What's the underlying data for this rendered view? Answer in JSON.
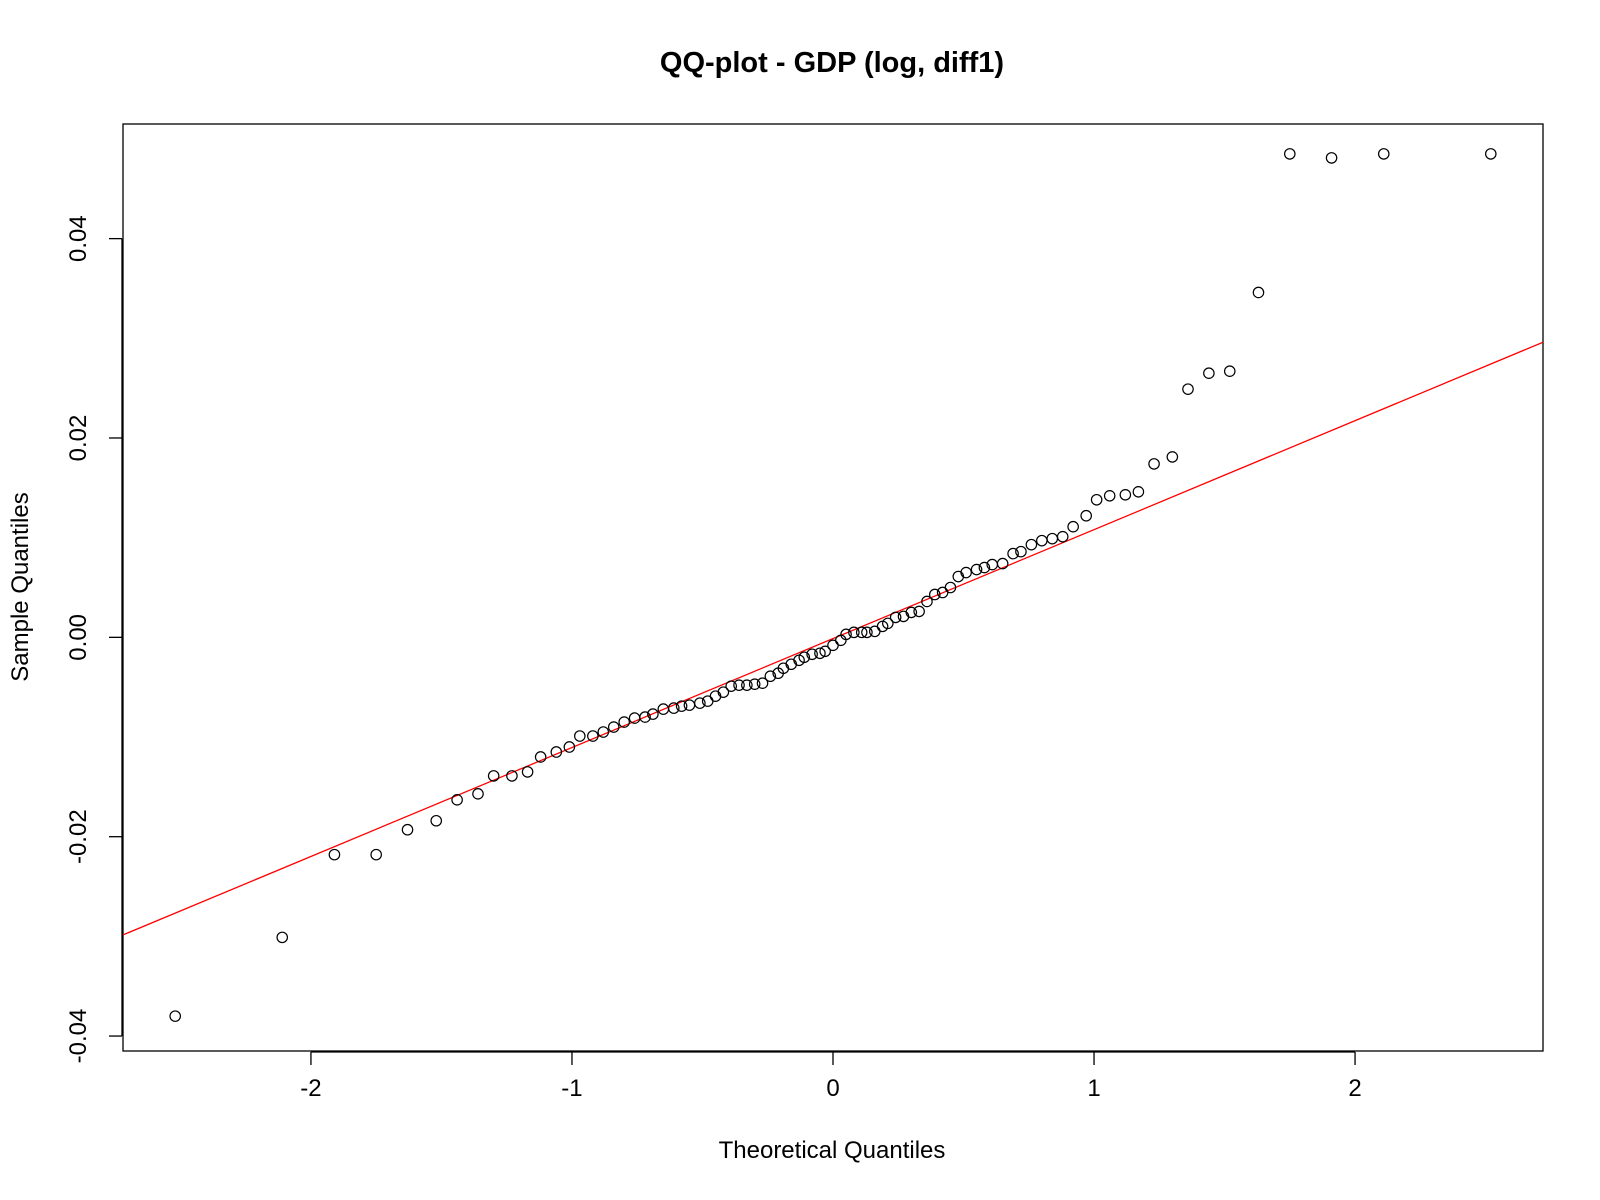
{
  "chart_data": {
    "type": "scatter",
    "title": "QQ-plot - GDP (log, diff1)",
    "xlabel": "Theoretical Quantiles",
    "ylabel": "Sample Quantiles",
    "xlim": [
      -2.72,
      2.72
    ],
    "ylim": [
      -0.0415,
      0.0515
    ],
    "x_ticks": [
      -2,
      -1,
      0,
      1,
      2
    ],
    "x_tick_labels": [
      "-2",
      "-1",
      "0",
      "1",
      "2"
    ],
    "y_ticks": [
      -0.04,
      -0.02,
      0.0,
      0.02,
      0.04
    ],
    "y_tick_labels": [
      "-0.04",
      "-0.02",
      "0.00",
      "0.02",
      "0.04"
    ],
    "grid": false,
    "legend": "none",
    "point_color": "#000000",
    "line_color": "#ff0000",
    "reference_line": {
      "slope": 0.01093,
      "intercept": -0.000124
    },
    "points": {
      "x": [
        -2.52,
        -2.11,
        -1.91,
        -1.75,
        -1.63,
        -1.52,
        -1.44,
        -1.36,
        -1.3,
        -1.23,
        -1.17,
        -1.12,
        -1.06,
        -1.01,
        -0.97,
        -0.92,
        -0.88,
        -0.84,
        -0.8,
        -0.76,
        -0.72,
        -0.69,
        -0.65,
        -0.61,
        -0.58,
        -0.55,
        -0.51,
        -0.48,
        -0.45,
        -0.42,
        -0.39,
        -0.36,
        -0.33,
        -0.3,
        -0.27,
        -0.24,
        -0.21,
        -0.19,
        -0.16,
        -0.13,
        -0.11,
        -0.08,
        -0.05,
        -0.03,
        0.0,
        0.03,
        0.05,
        0.08,
        0.11,
        0.13,
        0.16,
        0.19,
        0.21,
        0.24,
        0.27,
        0.3,
        0.33,
        0.36,
        0.39,
        0.42,
        0.45,
        0.48,
        0.51,
        0.55,
        0.58,
        0.61,
        0.65,
        0.69,
        0.72,
        0.76,
        0.8,
        0.84,
        0.88,
        0.92,
        0.97,
        1.01,
        1.06,
        1.12,
        1.17,
        1.23,
        1.3,
        1.36,
        1.44,
        1.52,
        1.63,
        1.75,
        1.91,
        2.11,
        2.52
      ],
      "y": [
        -0.038,
        -0.0301,
        -0.0218,
        -0.0218,
        -0.0193,
        -0.0184,
        -0.0163,
        -0.0157,
        -0.0139,
        -0.0139,
        -0.0135,
        -0.012,
        -0.0115,
        -0.011,
        -0.0099,
        -0.0099,
        -0.0095,
        -0.009,
        -0.0085,
        -0.0081,
        -0.008,
        -0.0077,
        -0.0072,
        -0.0071,
        -0.0069,
        -0.0068,
        -0.0066,
        -0.0064,
        -0.0059,
        -0.0055,
        -0.0049,
        -0.0048,
        -0.0048,
        -0.0047,
        -0.0046,
        -0.0039,
        -0.0036,
        -0.0031,
        -0.0027,
        -0.0023,
        -0.002,
        -0.0017,
        -0.0016,
        -0.0014,
        -0.0008,
        -0.0003,
        0.0003,
        0.0005,
        0.0005,
        0.0005,
        0.0006,
        0.0011,
        0.0014,
        0.002,
        0.0021,
        0.0025,
        0.0026,
        0.0036,
        0.0043,
        0.0045,
        0.005,
        0.0061,
        0.0065,
        0.0068,
        0.007,
        0.0073,
        0.0074,
        0.0084,
        0.0086,
        0.0093,
        0.0097,
        0.0099,
        0.0101,
        0.0111,
        0.0122,
        0.0138,
        0.0142,
        0.0143,
        0.0146,
        0.0174,
        0.0181,
        0.0249,
        0.0265,
        0.0267,
        0.0346,
        0.0485,
        0.0481,
        0.0485,
        0.0485
      ]
    }
  }
}
